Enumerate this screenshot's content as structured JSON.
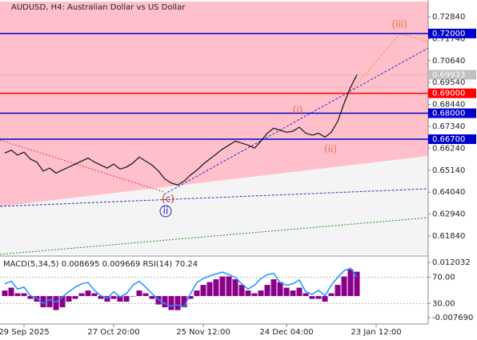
{
  "chart_data": [
    {
      "type": "line",
      "title": "AUDUSD, H4:  Australian Dollar vs US Dollar",
      "color": "#1e1e1e",
      "categories": [
        null,
        null,
        null,
        "29 Sep 2025",
        null,
        null,
        null,
        null,
        null,
        null,
        null,
        null,
        null,
        null,
        null,
        null,
        null,
        "27 Oct 20:00",
        null,
        null,
        null,
        null,
        null,
        null,
        null,
        null,
        null,
        null,
        null,
        null,
        null,
        "25 Nov 12:00",
        null,
        null,
        null,
        null,
        null,
        null,
        null,
        null,
        null,
        null,
        null,
        null,
        "24 Dec 04:00",
        null,
        null,
        null,
        null,
        null,
        null,
        null,
        null,
        null,
        null,
        null,
        null,
        null,
        "23 Jan 12:00",
        null,
        null,
        null,
        null,
        null,
        null,
        null
      ],
      "values": [
        0.66,
        0.6615,
        0.659,
        0.6605,
        0.657,
        0.6555,
        0.651,
        0.6525,
        0.65,
        0.6515,
        0.653,
        0.6545,
        0.656,
        0.6575,
        0.6555,
        0.654,
        0.6525,
        0.6545,
        0.652,
        0.653,
        0.655,
        0.658,
        0.656,
        0.654,
        0.651,
        0.647,
        0.645,
        0.644,
        0.646,
        0.649,
        0.6515,
        0.6545,
        0.657,
        0.6595,
        0.662,
        0.664,
        0.666,
        0.665,
        0.664,
        0.6625,
        0.666,
        0.67,
        0.6725,
        0.6715,
        0.6705,
        0.671,
        0.673,
        0.67,
        0.669,
        0.67,
        0.668,
        0.6705,
        0.676,
        0.685,
        0.693,
        0.6993,
        null,
        null,
        null,
        null,
        null,
        null,
        null,
        null,
        null,
        null
      ],
      "ylim": [
        0.6092,
        0.736
      ],
      "yticks": [
        {
          "value": 0.7284,
          "label": "0.72840"
        },
        {
          "value": 0.7174,
          "label": "0.71740"
        },
        {
          "value": 0.7064,
          "label": "0.70640"
        },
        {
          "value": 0.6954,
          "label": "0.69540"
        },
        {
          "value": 0.6844,
          "label": "0.68440"
        },
        {
          "value": 0.6734,
          "label": "0.67340"
        },
        {
          "value": 0.6624,
          "label": "0.66240"
        },
        {
          "value": 0.6514,
          "label": "0.65140"
        },
        {
          "value": 0.6404,
          "label": "0.64040"
        },
        {
          "value": 0.6294,
          "label": "0.62940"
        },
        {
          "value": 0.6184,
          "label": "0.61840"
        }
      ],
      "levels": [
        {
          "value": 0.72,
          "label": "0.72000",
          "color": "#0000cd"
        },
        {
          "value": 0.69,
          "label": "0.69000",
          "color": "#ff0000"
        },
        {
          "value": 0.68,
          "label": "0.68000",
          "color": "#0000cd"
        },
        {
          "value": 0.667,
          "label": "0.66700",
          "color": "#0000cd"
        }
      ],
      "last_price": {
        "value": 0.69933,
        "label": "0.69933"
      },
      "annotations": [
        "(c)",
        "ii",
        "(i)",
        "(ii)",
        "(iii)"
      ]
    },
    {
      "type": "bar",
      "title": "MACD(5,34,5) 0.008695 0.009669 RSI(14) 70.24",
      "color": "#8b008b",
      "values": [
        0.002,
        0.003,
        0.001,
        0.001,
        -0.001,
        -0.002,
        -0.004,
        -0.004,
        -0.005,
        -0.004,
        -0.002,
        -0.001,
        0.001,
        0.002,
        0.001,
        -0.001,
        -0.002,
        -0.001,
        -0.002,
        -0.002,
        0,
        0.002,
        0.001,
        -0.001,
        -0.003,
        -0.004,
        -0.005,
        -0.005,
        -0.004,
        -0.001,
        0.002,
        0.004,
        0.005,
        0.006,
        0.007,
        0.007,
        0.006,
        0.004,
        0.002,
        0.001,
        0.002,
        0.004,
        0.006,
        0.005,
        0.003,
        0.002,
        0.003,
        0.001,
        -0.001,
        -0.001,
        -0.002,
        0.001,
        0.004,
        0.007,
        0.0095,
        0.0087
      ],
      "ylim": [
        -0.009691,
        0.013747
      ],
      "yticks": [
        {
          "value": 0.012032,
          "label": "0.012032"
        },
        {
          "value": -0.00769,
          "label": "-0.007690"
        }
      ],
      "y2lim": [
        0,
        100
      ],
      "y2ticks": [
        {
          "value": 70,
          "label": "70.00"
        },
        {
          "value": 30,
          "label": "30.00"
        }
      ],
      "series": [
        {
          "name": "RSI(14)",
          "color": "#1e90ff",
          "axis": "y2",
          "values": [
            60,
            64,
            52,
            55,
            42,
            38,
            30,
            36,
            32,
            40,
            48,
            55,
            60,
            62,
            50,
            42,
            38,
            48,
            40,
            45,
            58,
            64,
            55,
            45,
            36,
            30,
            26,
            28,
            25,
            45,
            62,
            68,
            72,
            75,
            78,
            74,
            70,
            60,
            52,
            58,
            68,
            74,
            76,
            62,
            58,
            60,
            66,
            48,
            44,
            50,
            42,
            58,
            70,
            80,
            84,
            70.24
          ]
        }
      ]
    }
  ]
}
